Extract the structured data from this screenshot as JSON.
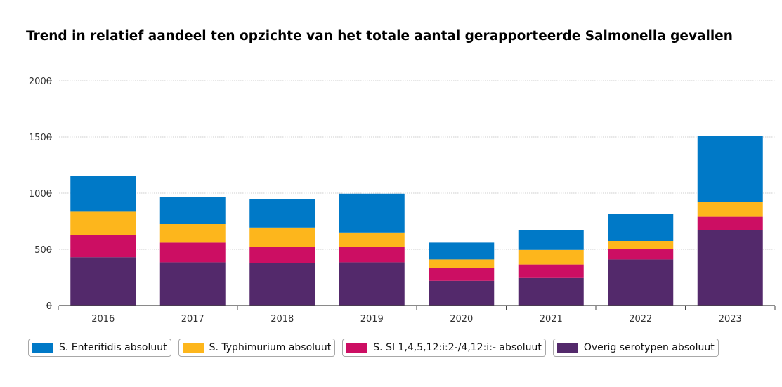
{
  "chart_data": {
    "type": "bar",
    "stacked": true,
    "title": "Trend in relatief aandeel ten opzichte van het totale aantal gerapporteerde Salmonella gevallen",
    "xlabel": "",
    "ylabel": "",
    "categories": [
      "2016",
      "2017",
      "2018",
      "2019",
      "2020",
      "2021",
      "2022",
      "2023"
    ],
    "ylim": [
      0,
      2000
    ],
    "yticks": [
      0,
      500,
      1000,
      1500,
      2000
    ],
    "grid": true,
    "legend_position": "bottom",
    "series": [
      {
        "name": "Overig serotypen absoluut",
        "color": "#53296b",
        "values": [
          430,
          385,
          375,
          385,
          220,
          245,
          410,
          670
        ]
      },
      {
        "name": "S. SI 1,4,5,12:i:2-/4,12:i:- absoluut",
        "color": "#cc0e63",
        "values": [
          195,
          175,
          145,
          135,
          115,
          120,
          90,
          120
        ]
      },
      {
        "name": "S. Typhimurium absoluut",
        "color": "#fdb61c",
        "values": [
          210,
          165,
          175,
          125,
          75,
          130,
          75,
          130
        ]
      },
      {
        "name": "S. Enteritidis absoluut",
        "color": "#0079c7",
        "values": [
          315,
          240,
          255,
          350,
          150,
          180,
          240,
          590
        ]
      }
    ],
    "legend_order": [
      3,
      2,
      1,
      0
    ]
  }
}
